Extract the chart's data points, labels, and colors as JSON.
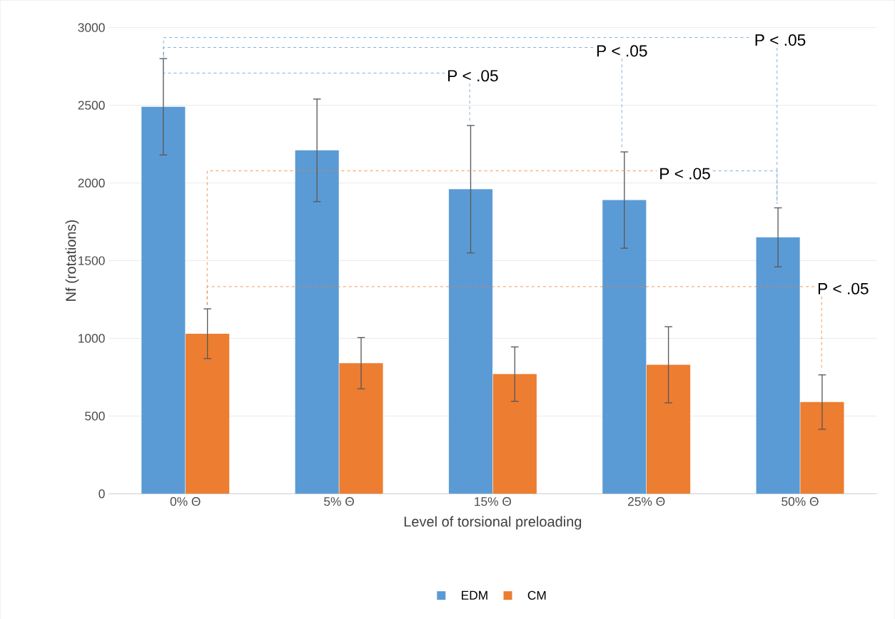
{
  "chart_data": {
    "type": "bar",
    "xlabel": "Level of torsional preloading",
    "ylabel": "Nf (rotations)",
    "categories": [
      "0% Θ",
      "5% Θ",
      "15% Θ",
      "25% Θ",
      "50% Θ"
    ],
    "series": [
      {
        "name": "EDM",
        "color": "#5b9bd5",
        "values": [
          2490,
          2210,
          1960,
          1890,
          1650
        ],
        "errors": [
          310,
          330,
          410,
          310,
          190
        ]
      },
      {
        "name": "CM",
        "color": "#ed7d31",
        "values": [
          1030,
          840,
          770,
          830,
          590
        ],
        "errors": [
          160,
          165,
          175,
          245,
          175
        ]
      }
    ],
    "ylim": [
      0,
      3000
    ],
    "yticks": [
      0,
      500,
      1000,
      1500,
      2000,
      2500,
      3000
    ],
    "grid": "y",
    "legend": "bottom",
    "annotations": [
      "P < .05",
      "P < .05",
      "P < .05",
      "P < .05",
      "P < .05"
    ]
  }
}
